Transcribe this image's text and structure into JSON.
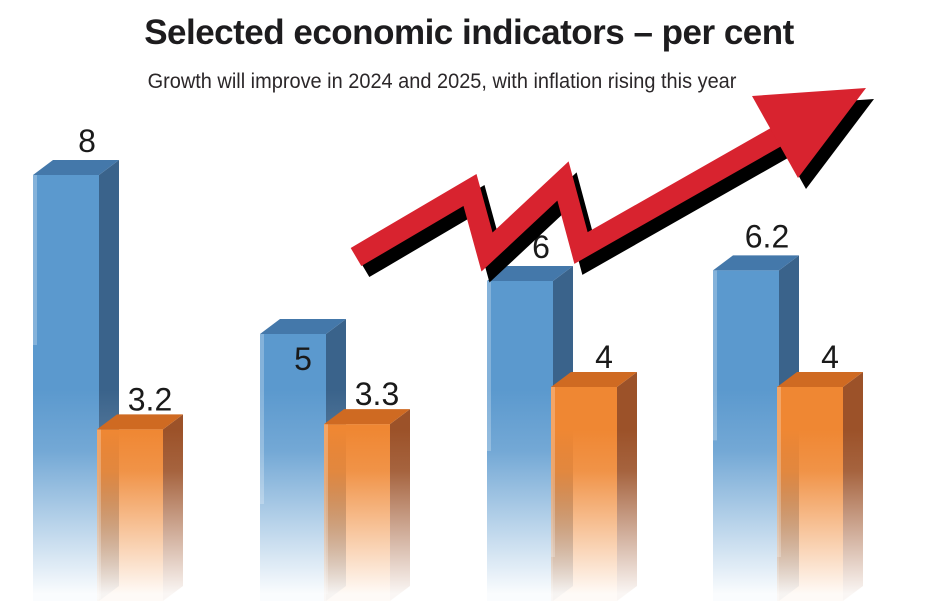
{
  "chart_data": {
    "type": "bar",
    "variant": "3d-paired-columns-no-axes",
    "title": "Selected economic indicators – per cent",
    "subtitle": "Growth will improve in 2024 and 2025, with inflation rising this year",
    "unit": "per cent",
    "groups": 4,
    "legend": "none",
    "axes": "none",
    "label_color": "#1a1a1a",
    "background": "#ffffff",
    "series": [
      {
        "name": "blue-series",
        "values": [
          8,
          5,
          6,
          6.2
        ],
        "data_labels": [
          "8",
          "5",
          "6",
          "6.2"
        ],
        "label_placement": [
          "above",
          "on-bar",
          "above",
          "above"
        ],
        "color_front": "#5b99ce",
        "color_top": "#4478aa",
        "color_side": "#3a638b"
      },
      {
        "name": "orange-series",
        "values": [
          3.2,
          3.3,
          4,
          4
        ],
        "data_labels": [
          "3.2",
          "3.3",
          "4",
          "4"
        ],
        "label_placement": [
          "above",
          "above",
          "above",
          "above"
        ],
        "color_front": "#ef8733",
        "color_top": "#cf6a22",
        "color_side": "#9c5229"
      }
    ],
    "annotations": [
      {
        "type": "zigzag-rising-arrow",
        "direction": "up-right",
        "color": "#d8232f",
        "shadow_color": "#000000"
      }
    ]
  }
}
